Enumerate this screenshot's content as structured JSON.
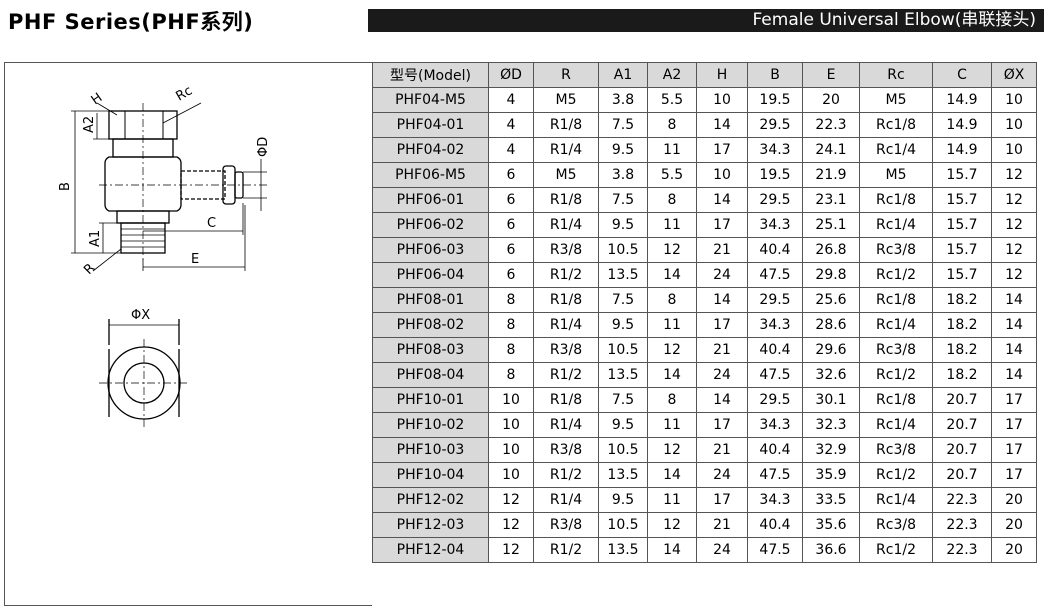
{
  "header": {
    "title": "PHF  Series(PHF系列)",
    "banner": "Female Universal Elbow(串联接头)"
  },
  "drawing": {
    "labels": {
      "h": "H",
      "rc": "Rc",
      "a2": "A2",
      "phi_d": "ΦD",
      "b": "B",
      "c": "C",
      "a1": "A1",
      "r": "R",
      "e": "E",
      "phi_x": "ΦX"
    }
  },
  "table": {
    "headers": [
      "型号(Model)",
      "ØD",
      "R",
      "A1",
      "A2",
      "H",
      "B",
      "E",
      "Rc",
      "C",
      "ØX"
    ],
    "rows": [
      [
        "PHF04-M5",
        "4",
        "M5",
        "3.8",
        "5.5",
        "10",
        "19.5",
        "20",
        "M5",
        "14.9",
        "10"
      ],
      [
        "PHF04-01",
        "4",
        "R1/8",
        "7.5",
        "8",
        "14",
        "29.5",
        "22.3",
        "Rc1/8",
        "14.9",
        "10"
      ],
      [
        "PHF04-02",
        "4",
        "R1/4",
        "9.5",
        "11",
        "17",
        "34.3",
        "24.1",
        "Rc1/4",
        "14.9",
        "10"
      ],
      [
        "PHF06-M5",
        "6",
        "M5",
        "3.8",
        "5.5",
        "10",
        "19.5",
        "21.9",
        "M5",
        "15.7",
        "12"
      ],
      [
        "PHF06-01",
        "6",
        "R1/8",
        "7.5",
        "8",
        "14",
        "29.5",
        "23.1",
        "Rc1/8",
        "15.7",
        "12"
      ],
      [
        "PHF06-02",
        "6",
        "R1/4",
        "9.5",
        "11",
        "17",
        "34.3",
        "25.1",
        "Rc1/4",
        "15.7",
        "12"
      ],
      [
        "PHF06-03",
        "6",
        "R3/8",
        "10.5",
        "12",
        "21",
        "40.4",
        "26.8",
        "Rc3/8",
        "15.7",
        "12"
      ],
      [
        "PHF06-04",
        "6",
        "R1/2",
        "13.5",
        "14",
        "24",
        "47.5",
        "29.8",
        "Rc1/2",
        "15.7",
        "12"
      ],
      [
        "PHF08-01",
        "8",
        "R1/8",
        "7.5",
        "8",
        "14",
        "29.5",
        "25.6",
        "Rc1/8",
        "18.2",
        "14"
      ],
      [
        "PHF08-02",
        "8",
        "R1/4",
        "9.5",
        "11",
        "17",
        "34.3",
        "28.6",
        "Rc1/4",
        "18.2",
        "14"
      ],
      [
        "PHF08-03",
        "8",
        "R3/8",
        "10.5",
        "12",
        "21",
        "40.4",
        "29.6",
        "Rc3/8",
        "18.2",
        "14"
      ],
      [
        "PHF08-04",
        "8",
        "R1/2",
        "13.5",
        "14",
        "24",
        "47.5",
        "32.6",
        "Rc1/2",
        "18.2",
        "14"
      ],
      [
        "PHF10-01",
        "10",
        "R1/8",
        "7.5",
        "8",
        "14",
        "29.5",
        "30.1",
        "Rc1/8",
        "20.7",
        "17"
      ],
      [
        "PHF10-02",
        "10",
        "R1/4",
        "9.5",
        "11",
        "17",
        "34.3",
        "32.3",
        "Rc1/4",
        "20.7",
        "17"
      ],
      [
        "PHF10-03",
        "10",
        "R3/8",
        "10.5",
        "12",
        "21",
        "40.4",
        "32.9",
        "Rc3/8",
        "20.7",
        "17"
      ],
      [
        "PHF10-04",
        "10",
        "R1/2",
        "13.5",
        "14",
        "24",
        "47.5",
        "35.9",
        "Rc1/2",
        "20.7",
        "17"
      ],
      [
        "PHF12-02",
        "12",
        "R1/4",
        "9.5",
        "11",
        "17",
        "34.3",
        "33.5",
        "Rc1/4",
        "22.3",
        "20"
      ],
      [
        "PHF12-03",
        "12",
        "R3/8",
        "10.5",
        "12",
        "21",
        "40.4",
        "35.6",
        "Rc3/8",
        "22.3",
        "20"
      ],
      [
        "PHF12-04",
        "12",
        "R1/2",
        "13.5",
        "14",
        "24",
        "47.5",
        "36.6",
        "Rc1/2",
        "22.3",
        "20"
      ]
    ]
  }
}
